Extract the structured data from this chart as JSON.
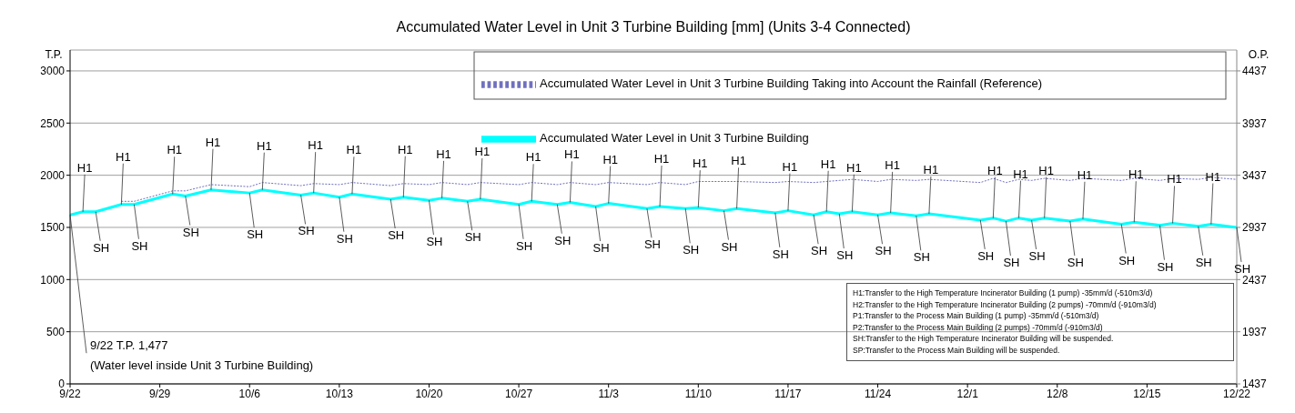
{
  "chart_data": {
    "type": "line",
    "title": "Accumulated Water Level in Unit 3 Turbine Building [mm] (Units 3-4 Connected)",
    "ylabel": "T.P.",
    "y2label": "O.P.",
    "x": [
      "--09-22",
      "--09-23",
      "--09-24",
      "--09-26",
      "--09-27",
      "--09-30",
      "--10-01",
      "--10-03",
      "--10-06",
      "--10-07",
      "--10-10",
      "--10-11",
      "--10-13",
      "--10-14",
      "--10-17",
      "--10-18",
      "--10-20",
      "--10-21",
      "--10-23",
      "--10-24",
      "--10-27",
      "--10-28",
      "--10-30",
      "--10-31",
      "--11-02",
      "--11-03",
      "--11-06",
      "--11-07",
      "--11-09",
      "--11-10",
      "--11-12",
      "--11-13",
      "--11-16",
      "--11-17",
      "--11-19",
      "--11-20",
      "--11-21",
      "--11-22",
      "--11-24",
      "--11-25",
      "--11-27",
      "--11-28",
      "--12-02",
      "--12-03",
      "--12-04",
      "--12-05",
      "--12-06",
      "--12-07",
      "--12-09",
      "--12-10",
      "--12-13",
      "--12-14",
      "--12-16",
      "--12-17",
      "--12-19",
      "--12-20",
      "--12-22"
    ],
    "series": [
      {
        "name": "Accumulated Water Level in Unit 3 Turbine Building Taking into Account the Rainfall (Reference)",
        "color": "#7070c0",
        "line_style": "dotted",
        "values": [
          null,
          null,
          null,
          1750,
          1750,
          1850,
          1850,
          1910,
          1890,
          1930,
          1900,
          1920,
          1910,
          1930,
          1900,
          1920,
          1910,
          1930,
          1910,
          1930,
          1910,
          1930,
          1910,
          1930,
          1910,
          1930,
          1910,
          1930,
          1910,
          1940,
          1940,
          1940,
          1930,
          1940,
          1930,
          1940,
          1950,
          1960,
          1940,
          1960,
          1950,
          1960,
          1930,
          1970,
          1930,
          1960,
          1950,
          1970,
          1950,
          1970,
          1950,
          1970,
          1950,
          1970,
          1960,
          1980,
          1960
        ]
      },
      {
        "name": "Accumulated Water Level in Unit 3 Turbine Building",
        "color": "#00ffff",
        "line_style": "solid",
        "values": [
          1620,
          1650,
          1650,
          1720,
          1720,
          1820,
          1800,
          1860,
          1830,
          1860,
          1810,
          1830,
          1790,
          1820,
          1770,
          1790,
          1760,
          1780,
          1750,
          1770,
          1720,
          1750,
          1720,
          1740,
          1700,
          1730,
          1680,
          1700,
          1680,
          1690,
          1660,
          1680,
          1640,
          1660,
          1620,
          1650,
          1630,
          1650,
          1620,
          1640,
          1610,
          1630,
          1570,
          1590,
          1560,
          1590,
          1570,
          1590,
          1560,
          1580,
          1530,
          1550,
          1520,
          1540,
          1510,
          1530,
          1500
        ]
      }
    ],
    "xlim": [
      "--09-22",
      "--12-22"
    ],
    "xticks": [
      {
        "value": "--09-22",
        "label": "9/22"
      },
      {
        "value": "--09-29",
        "label": "9/29"
      },
      {
        "value": "--10-06",
        "label": "10/6"
      },
      {
        "value": "--10-13",
        "label": "10/13"
      },
      {
        "value": "--10-20",
        "label": "10/20"
      },
      {
        "value": "--10-27",
        "label": "10/27"
      },
      {
        "value": "--11-03",
        "label": "11/3"
      },
      {
        "value": "--11-10",
        "label": "11/10"
      },
      {
        "value": "--11-17",
        "label": "11/17"
      },
      {
        "value": "--11-24",
        "label": "11/24"
      },
      {
        "value": "--12-01",
        "label": "12/1"
      },
      {
        "value": "--12-08",
        "label": "12/8"
      },
      {
        "value": "--12-15",
        "label": "12/15"
      },
      {
        "value": "--12-22",
        "label": "12/22"
      }
    ],
    "ylim": [
      0,
      3200
    ],
    "yticks": [
      0,
      500,
      1000,
      1500,
      2000,
      2500,
      3000
    ],
    "y2lim": [
      1437,
      4637
    ],
    "y2ticks": [
      1437,
      1937,
      2437,
      2937,
      3437,
      3937,
      4437
    ],
    "grid": "y",
    "legend": "top right",
    "marker": "none",
    "annotations": [
      {
        "text": "9/22  T.P. 1,477\n(Water level inside Unit 3 Turbine Building)",
        "x": "--09-22",
        "y": 1620
      },
      {
        "text": "H1",
        "x": "--09-23",
        "y": 1650
      },
      {
        "text": "SH",
        "x": "--09-24",
        "y": 1650
      },
      {
        "text": "H1",
        "x": "--09-26",
        "y": 1720
      },
      {
        "text": "SH",
        "x": "--09-27",
        "y": 1720
      },
      {
        "text": "H1",
        "x": "--09-30",
        "y": 1820
      },
      {
        "text": "SH",
        "x": "--10-01",
        "y": 1800
      },
      {
        "text": "H1",
        "x": "--10-03",
        "y": 1860
      },
      {
        "text": "SH",
        "x": "--10-06",
        "y": 1830
      },
      {
        "text": "H1",
        "x": "--10-07",
        "y": 1860
      },
      {
        "text": "SH",
        "x": "--10-10",
        "y": 1810
      },
      {
        "text": "H1",
        "x": "--10-11",
        "y": 1830
      },
      {
        "text": "SH",
        "x": "--10-13",
        "y": 1790
      },
      {
        "text": "H1",
        "x": "--10-14",
        "y": 1820
      },
      {
        "text": "SH",
        "x": "--10-17",
        "y": 1770
      },
      {
        "text": "H1",
        "x": "--10-18",
        "y": 1790
      },
      {
        "text": "SH",
        "x": "--10-20",
        "y": 1760
      },
      {
        "text": "H1",
        "x": "--10-21",
        "y": 1780
      },
      {
        "text": "SH",
        "x": "--10-23",
        "y": 1750
      },
      {
        "text": "H1",
        "x": "--10-24",
        "y": 1770
      },
      {
        "text": "SH",
        "x": "--10-27",
        "y": 1720
      },
      {
        "text": "H1",
        "x": "--10-28",
        "y": 1750
      },
      {
        "text": "SH",
        "x": "--10-30",
        "y": 1720
      },
      {
        "text": "H1",
        "x": "--10-31",
        "y": 1740
      },
      {
        "text": "SH",
        "x": "--11-02",
        "y": 1700
      },
      {
        "text": "H1",
        "x": "--11-03",
        "y": 1730
      },
      {
        "text": "SH",
        "x": "--11-06",
        "y": 1680
      },
      {
        "text": "H1",
        "x": "--11-07",
        "y": 1700
      },
      {
        "text": "SH",
        "x": "--11-09",
        "y": 1680
      },
      {
        "text": "H1",
        "x": "--11-10",
        "y": 1690
      },
      {
        "text": "SH",
        "x": "--11-12",
        "y": 1660
      },
      {
        "text": "H1",
        "x": "--11-13",
        "y": 1680
      },
      {
        "text": "SH",
        "x": "--11-16",
        "y": 1640
      },
      {
        "text": "H1",
        "x": "--11-17",
        "y": 1660
      },
      {
        "text": "SH",
        "x": "--11-19",
        "y": 1620
      },
      {
        "text": "H1",
        "x": "--11-20",
        "y": 1650
      },
      {
        "text": "SH",
        "x": "--11-21",
        "y": 1630
      },
      {
        "text": "H1",
        "x": "--11-22",
        "y": 1650
      },
      {
        "text": "SH",
        "x": "--11-24",
        "y": 1620
      },
      {
        "text": "H1",
        "x": "--11-25",
        "y": 1640
      },
      {
        "text": "SH",
        "x": "--11-27",
        "y": 1610
      },
      {
        "text": "H1",
        "x": "--11-28",
        "y": 1630
      },
      {
        "text": "SH",
        "x": "--12-02",
        "y": 1570
      },
      {
        "text": "H1",
        "x": "--12-03",
        "y": 1590
      },
      {
        "text": "SH",
        "x": "--12-04",
        "y": 1560
      },
      {
        "text": "H1",
        "x": "--12-05",
        "y": 1590
      },
      {
        "text": "SH",
        "x": "--12-06",
        "y": 1570
      },
      {
        "text": "H1",
        "x": "--12-07",
        "y": 1590
      },
      {
        "text": "SH",
        "x": "--12-09",
        "y": 1560
      },
      {
        "text": "H1",
        "x": "--12-10",
        "y": 1580
      },
      {
        "text": "SH",
        "x": "--12-13",
        "y": 1530
      },
      {
        "text": "H1",
        "x": "--12-14",
        "y": 1550
      },
      {
        "text": "SH",
        "x": "--12-16",
        "y": 1520
      },
      {
        "text": "H1",
        "x": "--12-17",
        "y": 1540
      },
      {
        "text": "SH",
        "x": "--12-19",
        "y": 1510
      },
      {
        "text": "H1",
        "x": "--12-20",
        "y": 1530
      },
      {
        "text": "SH",
        "x": "--12-22",
        "y": 1500
      },
      "H1:Transfer to the High Temperature Incinerator Building  (1 pump)  -35mm/d (-510m3/d)",
      "H2:Transfer to the High Temperature Incinerator Building  (2 pumps)  -70mm/d (-910m3/d)",
      "P1:Transfer to the Process Main Building (1 pump)  -35mm/d (-510m3/d)",
      "P2:Transfer to the Process Main Building (2 pumps)  -70mm/d (-910m3/d)",
      "SH:Transfer to the High Temperature Incinerator Building will be suspended.",
      "SP:Transfer to the Process Main Building will be suspended."
    ]
  }
}
